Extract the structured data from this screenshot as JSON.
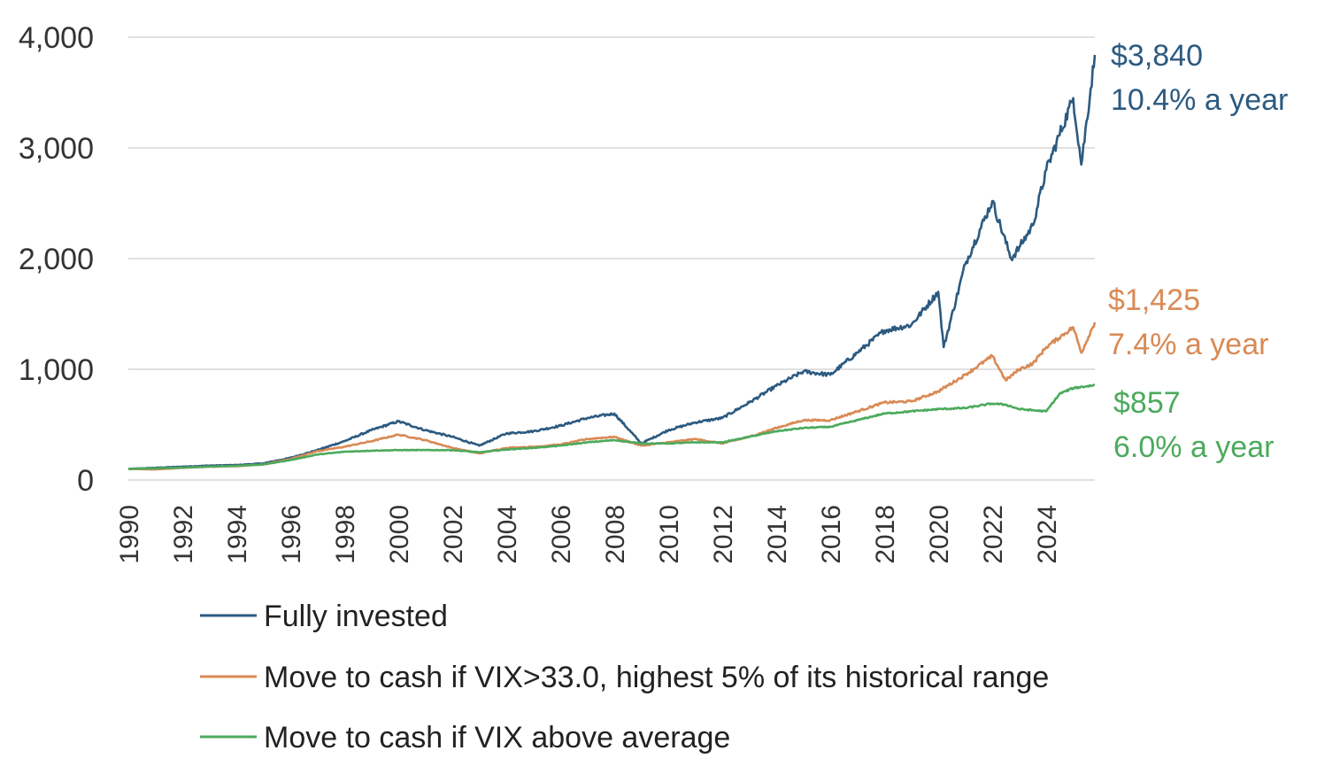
{
  "chart_data": {
    "type": "line",
    "title": "",
    "xlabel": "",
    "ylabel": "",
    "xlim": [
      1990,
      2025.8
    ],
    "ylim": [
      0,
      4000
    ],
    "y_ticks": [
      0,
      1000,
      2000,
      3000,
      4000
    ],
    "y_tick_labels": [
      "0",
      "1,000",
      "2,000",
      "3,000",
      "4,000"
    ],
    "x_tick_labels": [
      "1990",
      "1992",
      "1994",
      "1996",
      "1998",
      "2000",
      "2002",
      "2004",
      "2006",
      "2008",
      "2010",
      "2012",
      "2014",
      "2016",
      "2018",
      "2020",
      "2022",
      "2024"
    ],
    "grid": true,
    "legend_position": "bottom",
    "series": [
      {
        "name": "Fully invested",
        "color": "#2c5a80",
        "end_value_label": "$3,840",
        "end_rate_label": "10.4% a year",
        "points": [
          [
            1990,
            100
          ],
          [
            1991,
            110
          ],
          [
            1992,
            120
          ],
          [
            1993,
            130
          ],
          [
            1994,
            135
          ],
          [
            1995,
            150
          ],
          [
            1996,
            200
          ],
          [
            1997,
            270
          ],
          [
            1998,
            350
          ],
          [
            1999,
            450
          ],
          [
            2000,
            530
          ],
          [
            2001,
            450
          ],
          [
            2002,
            390
          ],
          [
            2003,
            310
          ],
          [
            2004,
            420
          ],
          [
            2005,
            440
          ],
          [
            2006,
            490
          ],
          [
            2007,
            560
          ],
          [
            2008,
            600
          ],
          [
            2009,
            330
          ],
          [
            2010,
            450
          ],
          [
            2011,
            520
          ],
          [
            2012,
            560
          ],
          [
            2013,
            700
          ],
          [
            2014,
            850
          ],
          [
            2015,
            980
          ],
          [
            2016,
            950
          ],
          [
            2017,
            1150
          ],
          [
            2018,
            1350
          ],
          [
            2019,
            1400
          ],
          [
            2020,
            1700
          ],
          [
            2020.2,
            1200
          ],
          [
            2021,
            1950
          ],
          [
            2022,
            2520
          ],
          [
            2022.7,
            2000
          ],
          [
            2023,
            2100
          ],
          [
            2023.5,
            2300
          ],
          [
            2024,
            2800
          ],
          [
            2025,
            3450
          ],
          [
            2025.3,
            2850
          ],
          [
            2025.8,
            3840
          ]
        ]
      },
      {
        "name": "Move to cash if VIX>33.0, highest 5% of its historical range",
        "color": "#d98a55",
        "end_value_label": "$1,425",
        "end_rate_label": "7.4% a year",
        "points": [
          [
            1990,
            100
          ],
          [
            1991,
            95
          ],
          [
            1992,
            110
          ],
          [
            1993,
            120
          ],
          [
            1994,
            125
          ],
          [
            1995,
            140
          ],
          [
            1996,
            190
          ],
          [
            1997,
            260
          ],
          [
            1998,
            300
          ],
          [
            1999,
            350
          ],
          [
            2000,
            410
          ],
          [
            2001,
            360
          ],
          [
            2002,
            290
          ],
          [
            2003,
            240
          ],
          [
            2004,
            290
          ],
          [
            2005,
            300
          ],
          [
            2006,
            320
          ],
          [
            2007,
            370
          ],
          [
            2008,
            390
          ],
          [
            2009,
            310
          ],
          [
            2010,
            340
          ],
          [
            2011,
            370
          ],
          [
            2012,
            330
          ],
          [
            2013,
            390
          ],
          [
            2014,
            470
          ],
          [
            2015,
            540
          ],
          [
            2016,
            540
          ],
          [
            2017,
            620
          ],
          [
            2018,
            700
          ],
          [
            2019,
            710
          ],
          [
            2020,
            800
          ],
          [
            2021,
            950
          ],
          [
            2022,
            1120
          ],
          [
            2022.5,
            900
          ],
          [
            2023,
            1000
          ],
          [
            2023.5,
            1050
          ],
          [
            2024,
            1200
          ],
          [
            2025,
            1380
          ],
          [
            2025.3,
            1150
          ],
          [
            2025.8,
            1425
          ]
        ]
      },
      {
        "name": "Move to cash if VIX above average",
        "color": "#4caa5c",
        "end_value_label": "$857",
        "end_rate_label": "6.0% a year",
        "points": [
          [
            1990,
            100
          ],
          [
            1991,
            105
          ],
          [
            1992,
            112
          ],
          [
            1993,
            120
          ],
          [
            1994,
            128
          ],
          [
            1995,
            140
          ],
          [
            1996,
            180
          ],
          [
            1997,
            230
          ],
          [
            1998,
            255
          ],
          [
            1999,
            265
          ],
          [
            2000,
            270
          ],
          [
            2001,
            270
          ],
          [
            2002,
            270
          ],
          [
            2003,
            250
          ],
          [
            2004,
            275
          ],
          [
            2005,
            290
          ],
          [
            2006,
            310
          ],
          [
            2007,
            340
          ],
          [
            2008,
            360
          ],
          [
            2009,
            330
          ],
          [
            2010,
            330
          ],
          [
            2011,
            340
          ],
          [
            2012,
            340
          ],
          [
            2013,
            390
          ],
          [
            2014,
            440
          ],
          [
            2015,
            470
          ],
          [
            2016,
            480
          ],
          [
            2017,
            540
          ],
          [
            2018,
            600
          ],
          [
            2019,
            620
          ],
          [
            2020,
            640
          ],
          [
            2021,
            650
          ],
          [
            2022,
            690
          ],
          [
            2022.5,
            680
          ],
          [
            2023,
            640
          ],
          [
            2024,
            620
          ],
          [
            2024.5,
            780
          ],
          [
            2025,
            830
          ],
          [
            2025.8,
            857
          ]
        ]
      }
    ]
  }
}
